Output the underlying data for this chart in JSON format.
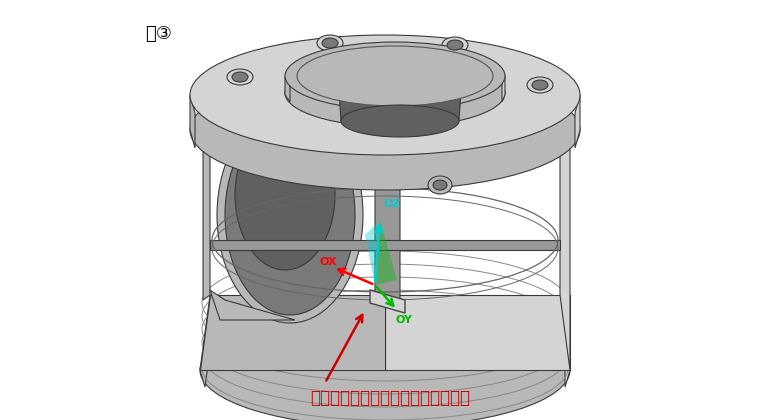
{
  "title_label": "図③",
  "annotation_text": "座面を設ける事によって締結面確保",
  "bg_color": "#ffffff",
  "c_light": "#d4d4d4",
  "c_mid": "#b8b8b8",
  "c_dark": "#989898",
  "c_darker": "#7a7a7a",
  "c_darkest": "#606060",
  "c_inner": "#aaaaaa",
  "c_edge": "#3a3a3a",
  "axis_ox_color": "#ff0000",
  "axis_oy_color": "#00bb00",
  "axis_oz_color": "#00cccc",
  "ox_label": "OX",
  "oy_label": "OY",
  "oz_label": "OZ"
}
